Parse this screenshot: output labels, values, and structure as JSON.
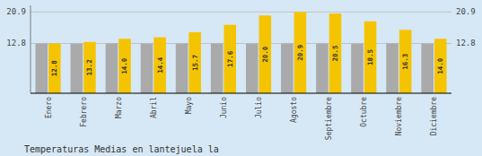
{
  "chart_data": {
    "type": "bar",
    "title": "Temperaturas Medias en lantejuela la",
    "categories": [
      "Enero",
      "Febrero",
      "Marzo",
      "Abril",
      "Mayo",
      "Junio",
      "Julio",
      "Agosto",
      "Septiembre",
      "Octubre",
      "Noviembre",
      "Diciembre"
    ],
    "series": [
      {
        "color": "#AAAAAA",
        "values": [
          12.8,
          12.8,
          12.8,
          12.8,
          12.8,
          12.8,
          12.8,
          12.8,
          12.8,
          12.8,
          12.8,
          12.8
        ]
      },
      {
        "color": "#F5C400",
        "values": [
          12.8,
          13.2,
          14.0,
          14.4,
          15.7,
          17.6,
          20.0,
          20.9,
          20.5,
          18.5,
          16.3,
          14.0
        ],
        "data_labels": true,
        "value_labels": [
          "12.8",
          "13.2",
          "14.0",
          "14.4",
          "15.7",
          "17.6",
          "20.0",
          "20.9",
          "20.5",
          "18.5",
          "16.3",
          "14.0"
        ]
      }
    ],
    "ylim": [
      0,
      22.6
    ],
    "yticks": [
      12.8,
      20.9
    ],
    "y2lim": [
      0,
      22.6
    ],
    "y2ticks": [
      12.8,
      20.9
    ],
    "grid": true
  }
}
